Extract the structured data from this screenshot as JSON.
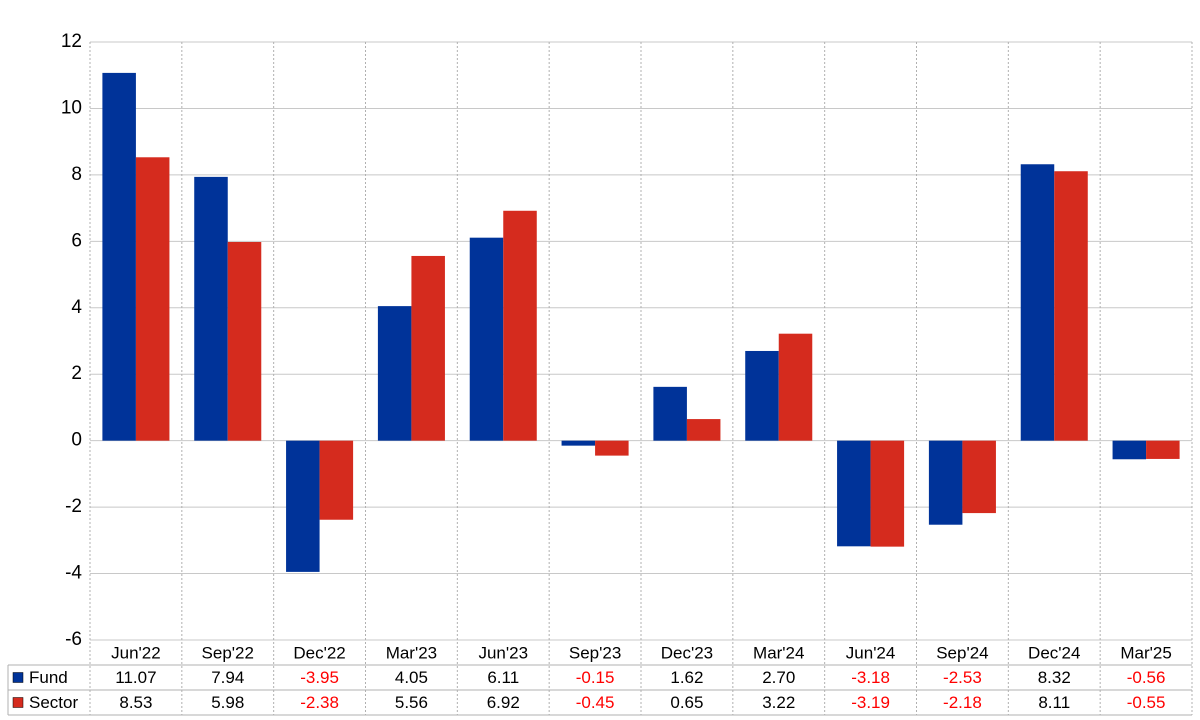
{
  "chart_data": {
    "type": "bar",
    "categories": [
      "Jun'22",
      "Sep'22",
      "Dec'22",
      "Mar'23",
      "Jun'23",
      "Sep'23",
      "Dec'23",
      "Mar'24",
      "Jun'24",
      "Sep'24",
      "Dec'24",
      "Mar'25"
    ],
    "series": [
      {
        "name": "Fund",
        "color": "#003399",
        "values": [
          11.07,
          7.94,
          -3.95,
          4.05,
          6.11,
          -0.15,
          1.62,
          2.7,
          -3.18,
          -2.53,
          8.32,
          -0.56
        ],
        "value_labels": [
          "11.07",
          "7.94",
          "-3.95",
          "4.05",
          "6.11",
          "-0.15",
          "1.62",
          "2.70",
          "-3.18",
          "-2.53",
          "8.32",
          "-0.56"
        ]
      },
      {
        "name": "Sector",
        "color": "#d52b1e",
        "values": [
          8.53,
          5.98,
          -2.38,
          5.56,
          6.92,
          -0.45,
          0.65,
          3.22,
          -3.19,
          -2.18,
          8.11,
          -0.55
        ],
        "value_labels": [
          "8.53",
          "5.98",
          "-2.38",
          "5.56",
          "6.92",
          "-0.45",
          "0.65",
          "3.22",
          "-3.19",
          "-2.18",
          "8.11",
          "-0.55"
        ]
      }
    ],
    "ylim": [
      -6,
      12
    ],
    "yticks": [
      -6,
      -4,
      -2,
      0,
      2,
      4,
      6,
      8,
      10,
      12
    ],
    "grid": true,
    "negative_label_color": "#ff0000"
  }
}
